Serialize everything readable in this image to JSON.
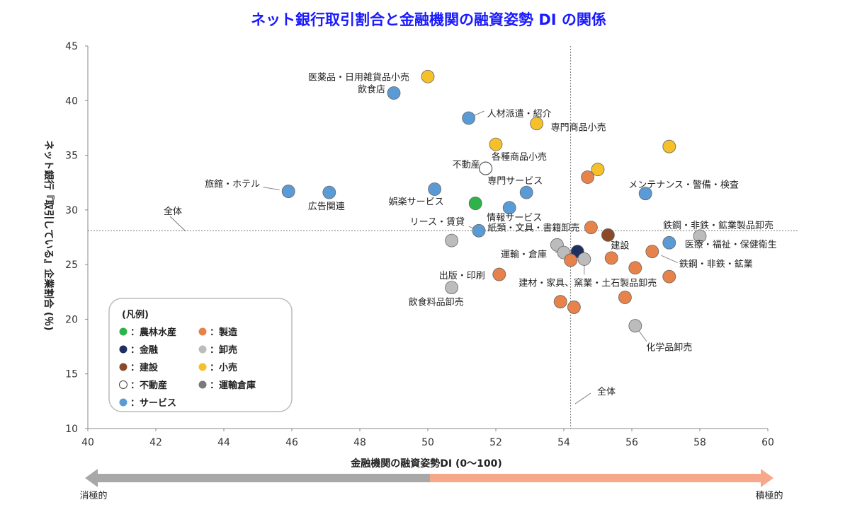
{
  "chart_data": {
    "type": "scatter",
    "title": "ネット銀行取引割合と金融機関の融資姿勢 DI の関係",
    "xlabel": "金融機関の融資姿勢DI (0～100)",
    "ylabel": "ネット銀行『取引している』企業割合 (％)",
    "xlim": [
      40,
      60
    ],
    "ylim": [
      10,
      45
    ],
    "xticks": [
      40,
      42,
      44,
      46,
      48,
      50,
      52,
      54,
      56,
      58,
      60
    ],
    "yticks": [
      10,
      15,
      20,
      25,
      30,
      35,
      40,
      45
    ],
    "reference_lines": {
      "x": 54.2,
      "y": 28.1,
      "x_label": "全体",
      "y_label": "全体"
    },
    "arrow": {
      "left_label": "消極的",
      "right_label": "積極的"
    },
    "legend": {
      "title": "(凡例)",
      "items": [
        {
          "key": "agri",
          "label": "：農林水産",
          "color": "#2db34a"
        },
        {
          "key": "mfg",
          "label": "：製造",
          "color": "#e6824a"
        },
        {
          "key": "fin",
          "label": "：金融",
          "color": "#1f2f5f"
        },
        {
          "key": "whs",
          "label": "：卸売",
          "color": "#bcbcbc"
        },
        {
          "key": "con",
          "label": "：建設",
          "color": "#8a4a2a"
        },
        {
          "key": "ret",
          "label": "：小売",
          "color": "#f5c02a"
        },
        {
          "key": "re",
          "label": "：不動産",
          "color": "#ffffff"
        },
        {
          "key": "trans",
          "label": "：運輸倉庫",
          "color": "#7a7a7a"
        },
        {
          "key": "svc",
          "label": "：サービス",
          "color": "#5b9bd5"
        }
      ]
    },
    "points": [
      {
        "x": 50.0,
        "y": 42.2,
        "cat": "ret",
        "label": "医薬品・日用雑貨品小売"
      },
      {
        "x": 49.0,
        "y": 40.7,
        "cat": "svc",
        "label": "飲食店"
      },
      {
        "x": 51.2,
        "y": 38.4,
        "cat": "svc",
        "label": "人材派遣・紹介"
      },
      {
        "x": 53.2,
        "y": 37.9,
        "cat": "ret",
        "label": "専門商品小売"
      },
      {
        "x": 52.0,
        "y": 36.0,
        "cat": "ret",
        "label": "各種商品小売"
      },
      {
        "x": 57.1,
        "y": 35.8,
        "cat": "ret",
        "label": ""
      },
      {
        "x": 51.7,
        "y": 33.8,
        "cat": "re",
        "label": "不動産"
      },
      {
        "x": 55.0,
        "y": 33.7,
        "cat": "ret",
        "label": ""
      },
      {
        "x": 54.7,
        "y": 33.0,
        "cat": "mfg",
        "label": ""
      },
      {
        "x": 45.9,
        "y": 31.7,
        "cat": "svc",
        "label": "旅館・ホテル"
      },
      {
        "x": 47.1,
        "y": 31.6,
        "cat": "svc",
        "label": "広告関連"
      },
      {
        "x": 50.2,
        "y": 31.9,
        "cat": "svc",
        "label": "娯楽サービス"
      },
      {
        "x": 52.9,
        "y": 31.6,
        "cat": "svc",
        "label": "専門サービス"
      },
      {
        "x": 56.4,
        "y": 31.5,
        "cat": "svc",
        "label": "メンテナンス・警備・検査"
      },
      {
        "x": 51.4,
        "y": 30.6,
        "cat": "agri",
        "label": ""
      },
      {
        "x": 52.4,
        "y": 30.2,
        "cat": "svc",
        "label": "情報サービス"
      },
      {
        "x": 51.5,
        "y": 28.1,
        "cat": "svc",
        "label": "リース・賃貸"
      },
      {
        "x": 54.8,
        "y": 28.4,
        "cat": "mfg",
        "label": "紙類・文具・書籍卸売"
      },
      {
        "x": 58.0,
        "y": 27.6,
        "cat": "whs",
        "label": "鉄鋼・非鉄・鉱業製品卸売"
      },
      {
        "x": 55.3,
        "y": 27.7,
        "cat": "con",
        "label": "建設"
      },
      {
        "x": 57.1,
        "y": 27.0,
        "cat": "svc",
        "label": "医療・福祉・保健衛生"
      },
      {
        "x": 50.7,
        "y": 27.2,
        "cat": "whs",
        "label": ""
      },
      {
        "x": 53.8,
        "y": 26.8,
        "cat": "whs",
        "label": ""
      },
      {
        "x": 54.0,
        "y": 26.1,
        "cat": "whs",
        "label": "運輸・倉庫"
      },
      {
        "x": 54.4,
        "y": 26.2,
        "cat": "fin",
        "label": ""
      },
      {
        "x": 54.2,
        "y": 25.4,
        "cat": "mfg",
        "label": ""
      },
      {
        "x": 54.6,
        "y": 25.5,
        "cat": "whs",
        "label": "建材・家具、窯業・土石製品卸売"
      },
      {
        "x": 55.4,
        "y": 25.6,
        "cat": "mfg",
        "label": ""
      },
      {
        "x": 56.6,
        "y": 26.2,
        "cat": "mfg",
        "label": "鉄鋼・非鉄・鉱業"
      },
      {
        "x": 56.1,
        "y": 24.7,
        "cat": "mfg",
        "label": ""
      },
      {
        "x": 57.1,
        "y": 23.9,
        "cat": "mfg",
        "label": ""
      },
      {
        "x": 52.1,
        "y": 24.1,
        "cat": "mfg",
        "label": "出版・印刷"
      },
      {
        "x": 50.7,
        "y": 22.9,
        "cat": "whs",
        "label": "飲食料品卸売"
      },
      {
        "x": 55.8,
        "y": 22.0,
        "cat": "mfg",
        "label": ""
      },
      {
        "x": 53.9,
        "y": 21.6,
        "cat": "mfg",
        "label": ""
      },
      {
        "x": 54.3,
        "y": 21.1,
        "cat": "mfg",
        "label": ""
      },
      {
        "x": 56.1,
        "y": 19.4,
        "cat": "whs",
        "label": "化学品卸売"
      }
    ]
  }
}
